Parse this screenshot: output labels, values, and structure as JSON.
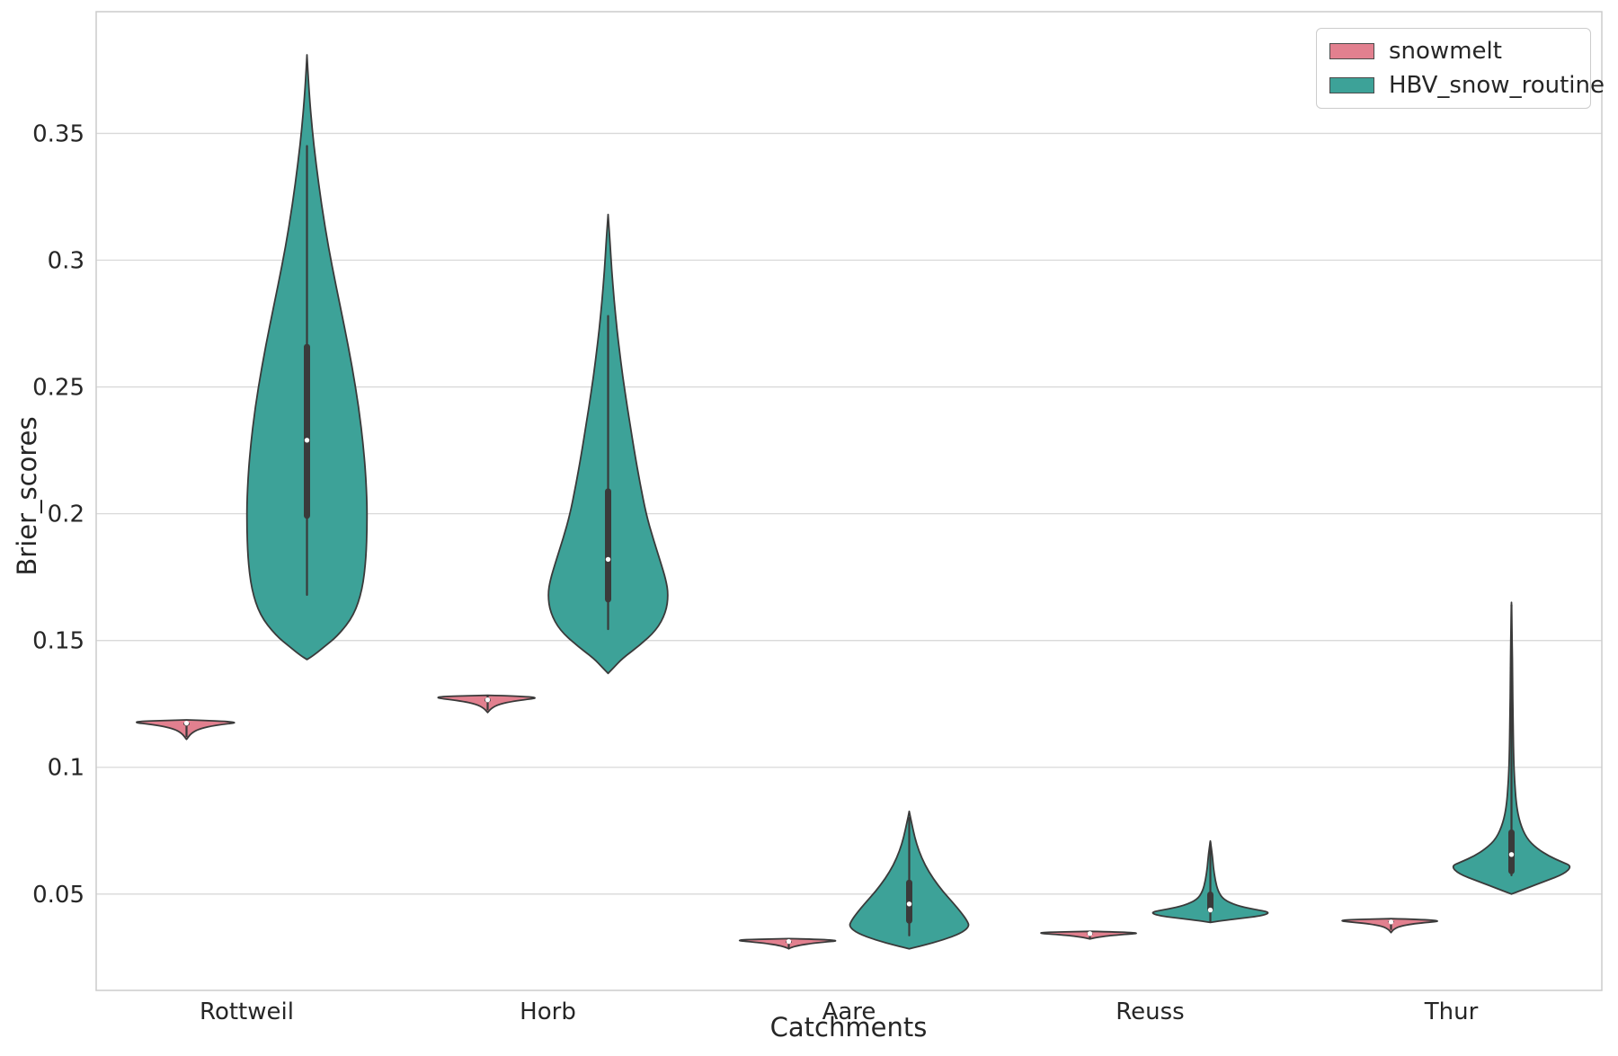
{
  "style": {
    "edge_color": "#3a3a3a",
    "grid_color": "#d9d9d9",
    "border_color": "#cccccc",
    "text_color": "#262626",
    "inner_box_color": "#3a3a3a",
    "median_dot_color": "#ffffff",
    "background": "#ffffff"
  },
  "chart_data": {
    "type": "violin",
    "title": "",
    "xlabel": "Catchments",
    "ylabel": "Brier_scores",
    "grid": "horizontal",
    "legend_position": "upper right",
    "categories": [
      "Rottweil",
      "Horb",
      "Aare",
      "Reuss",
      "Thur"
    ],
    "series": [
      {
        "name": "snowmelt",
        "color": "#e2808f"
      },
      {
        "name": "HBV_snow_routine",
        "color": "#3da298"
      }
    ],
    "ylim": [
      0.012,
      0.398
    ],
    "yticks": [
      0.05,
      0.1,
      0.15,
      0.2,
      0.25,
      0.3,
      0.35
    ],
    "ytick_labels": [
      "0.05",
      "0.1",
      "0.15",
      "0.2",
      "0.25",
      "0.3",
      "0.35"
    ],
    "violins": [
      {
        "category": "Rottweil",
        "series": "snowmelt",
        "stats": {
          "min": 0.111,
          "max": 0.1187,
          "median": 0.1174,
          "q1": 0.1163,
          "q3": 0.118,
          "whisker_lo": 0.1122,
          "whisker_hi": 0.1184
        },
        "profile": [
          [
            0.1187,
            0
          ],
          [
            0.118,
            1.0
          ],
          [
            0.1166,
            0.48
          ],
          [
            0.1152,
            0.22
          ],
          [
            0.1135,
            0.08
          ],
          [
            0.111,
            0
          ]
        ]
      },
      {
        "category": "Rottweil",
        "series": "HBV_snow_routine",
        "stats": {
          "min": 0.1425,
          "max": 0.381,
          "median": 0.229,
          "q1": 0.198,
          "q3": 0.267,
          "whisker_lo": 0.168,
          "whisker_hi": 0.345
        },
        "profile": [
          [
            0.381,
            0
          ],
          [
            0.368,
            0.03
          ],
          [
            0.353,
            0.08
          ],
          [
            0.338,
            0.15
          ],
          [
            0.322,
            0.24
          ],
          [
            0.306,
            0.35
          ],
          [
            0.29,
            0.48
          ],
          [
            0.274,
            0.62
          ],
          [
            0.258,
            0.75
          ],
          [
            0.242,
            0.86
          ],
          [
            0.226,
            0.94
          ],
          [
            0.21,
            0.99
          ],
          [
            0.196,
            1.0
          ],
          [
            0.182,
            0.98
          ],
          [
            0.17,
            0.92
          ],
          [
            0.16,
            0.78
          ],
          [
            0.152,
            0.52
          ],
          [
            0.147,
            0.26
          ],
          [
            0.144,
            0.1
          ],
          [
            0.1425,
            0
          ]
        ]
      },
      {
        "category": "Horb",
        "series": "snowmelt",
        "stats": {
          "min": 0.1216,
          "max": 0.1284,
          "median": 0.1266,
          "q1": 0.1256,
          "q3": 0.1274,
          "whisker_lo": 0.1228,
          "whisker_hi": 0.128
        },
        "profile": [
          [
            0.1284,
            0
          ],
          [
            0.1278,
            1.0
          ],
          [
            0.1262,
            0.45
          ],
          [
            0.1248,
            0.18
          ],
          [
            0.1232,
            0.06
          ],
          [
            0.1216,
            0
          ]
        ]
      },
      {
        "category": "Horb",
        "series": "HBV_snow_routine",
        "stats": {
          "min": 0.137,
          "max": 0.318,
          "median": 0.182,
          "q1": 0.165,
          "q3": 0.21,
          "whisker_lo": 0.1545,
          "whisker_hi": 0.278
        },
        "profile": [
          [
            0.318,
            0
          ],
          [
            0.308,
            0.03
          ],
          [
            0.296,
            0.06
          ],
          [
            0.284,
            0.1
          ],
          [
            0.272,
            0.15
          ],
          [
            0.26,
            0.21
          ],
          [
            0.248,
            0.28
          ],
          [
            0.236,
            0.36
          ],
          [
            0.224,
            0.44
          ],
          [
            0.212,
            0.53
          ],
          [
            0.2,
            0.63
          ],
          [
            0.19,
            0.75
          ],
          [
            0.181,
            0.87
          ],
          [
            0.174,
            0.96
          ],
          [
            0.168,
            1.0
          ],
          [
            0.161,
            0.96
          ],
          [
            0.154,
            0.8
          ],
          [
            0.148,
            0.52
          ],
          [
            0.143,
            0.24
          ],
          [
            0.139,
            0.08
          ],
          [
            0.137,
            0
          ]
        ]
      },
      {
        "category": "Aare",
        "series": "snowmelt",
        "stats": {
          "min": 0.0284,
          "max": 0.0324,
          "median": 0.0313,
          "q1": 0.0306,
          "q3": 0.0317,
          "whisker_lo": 0.0292,
          "whisker_hi": 0.032
        },
        "profile": [
          [
            0.0324,
            0
          ],
          [
            0.0319,
            1.0
          ],
          [
            0.0307,
            0.42
          ],
          [
            0.0297,
            0.15
          ],
          [
            0.0289,
            0.04
          ],
          [
            0.0284,
            0
          ]
        ]
      },
      {
        "category": "Aare",
        "series": "HBV_snow_routine",
        "stats": {
          "min": 0.0284,
          "max": 0.0826,
          "median": 0.0461,
          "q1": 0.0383,
          "q3": 0.0557,
          "whisker_lo": 0.0337,
          "whisker_hi": 0.08
        },
        "profile": [
          [
            0.0826,
            0
          ],
          [
            0.078,
            0.04
          ],
          [
            0.0725,
            0.09
          ],
          [
            0.067,
            0.16
          ],
          [
            0.0615,
            0.26
          ],
          [
            0.056,
            0.4
          ],
          [
            0.051,
            0.56
          ],
          [
            0.0465,
            0.73
          ],
          [
            0.0425,
            0.87
          ],
          [
            0.0395,
            0.96
          ],
          [
            0.0372,
            1.0
          ],
          [
            0.0345,
            0.86
          ],
          [
            0.0318,
            0.55
          ],
          [
            0.0297,
            0.22
          ],
          [
            0.0284,
            0
          ]
        ]
      },
      {
        "category": "Reuss",
        "series": "snowmelt",
        "stats": {
          "min": 0.0323,
          "max": 0.0353,
          "median": 0.0344,
          "q1": 0.0339,
          "q3": 0.0347,
          "whisker_lo": 0.0327,
          "whisker_hi": 0.0349
        },
        "profile": [
          [
            0.0353,
            0
          ],
          [
            0.0348,
            1.0
          ],
          [
            0.0338,
            0.4
          ],
          [
            0.033,
            0.13
          ],
          [
            0.0323,
            0
          ]
        ]
      },
      {
        "category": "Reuss",
        "series": "HBV_snow_routine",
        "stats": {
          "min": 0.0388,
          "max": 0.0709,
          "median": 0.0437,
          "q1": 0.0428,
          "q3": 0.051,
          "whisker_lo": 0.0392,
          "whisker_hi": 0.0705
        },
        "profile": [
          [
            0.0709,
            0
          ],
          [
            0.066,
            0.03
          ],
          [
            0.0605,
            0.05
          ],
          [
            0.0555,
            0.08
          ],
          [
            0.051,
            0.13
          ],
          [
            0.0478,
            0.22
          ],
          [
            0.0455,
            0.43
          ],
          [
            0.044,
            0.72
          ],
          [
            0.0428,
            1.0
          ],
          [
            0.0415,
            0.87
          ],
          [
            0.0403,
            0.47
          ],
          [
            0.0394,
            0.17
          ],
          [
            0.0388,
            0
          ]
        ]
      },
      {
        "category": "Thur",
        "series": "snowmelt",
        "stats": {
          "min": 0.0348,
          "max": 0.0403,
          "median": 0.039,
          "q1": 0.0386,
          "q3": 0.0395,
          "whisker_lo": 0.0362,
          "whisker_hi": 0.0398
        },
        "profile": [
          [
            0.0403,
            0
          ],
          [
            0.0397,
            1.0
          ],
          [
            0.0384,
            0.4
          ],
          [
            0.0373,
            0.14
          ],
          [
            0.036,
            0.04
          ],
          [
            0.0348,
            0
          ]
        ]
      },
      {
        "category": "Thur",
        "series": "HBV_snow_routine",
        "stats": {
          "min": 0.05,
          "max": 0.165,
          "median": 0.0656,
          "q1": 0.0578,
          "q3": 0.0755,
          "whisker_lo": 0.0574,
          "whisker_hi": 0.164
        },
        "profile": [
          [
            0.165,
            0
          ],
          [
            0.15,
            0.012
          ],
          [
            0.135,
            0.018
          ],
          [
            0.12,
            0.025
          ],
          [
            0.105,
            0.035
          ],
          [
            0.095,
            0.05
          ],
          [
            0.085,
            0.08
          ],
          [
            0.078,
            0.14
          ],
          [
            0.072,
            0.25
          ],
          [
            0.068,
            0.42
          ],
          [
            0.065,
            0.62
          ],
          [
            0.0625,
            0.85
          ],
          [
            0.061,
            1.0
          ],
          [
            0.058,
            0.88
          ],
          [
            0.055,
            0.55
          ],
          [
            0.052,
            0.22
          ],
          [
            0.05,
            0
          ]
        ]
      }
    ]
  },
  "legend": {
    "items": [
      {
        "label": "snowmelt"
      },
      {
        "label": "HBV_snow_routine"
      }
    ]
  }
}
